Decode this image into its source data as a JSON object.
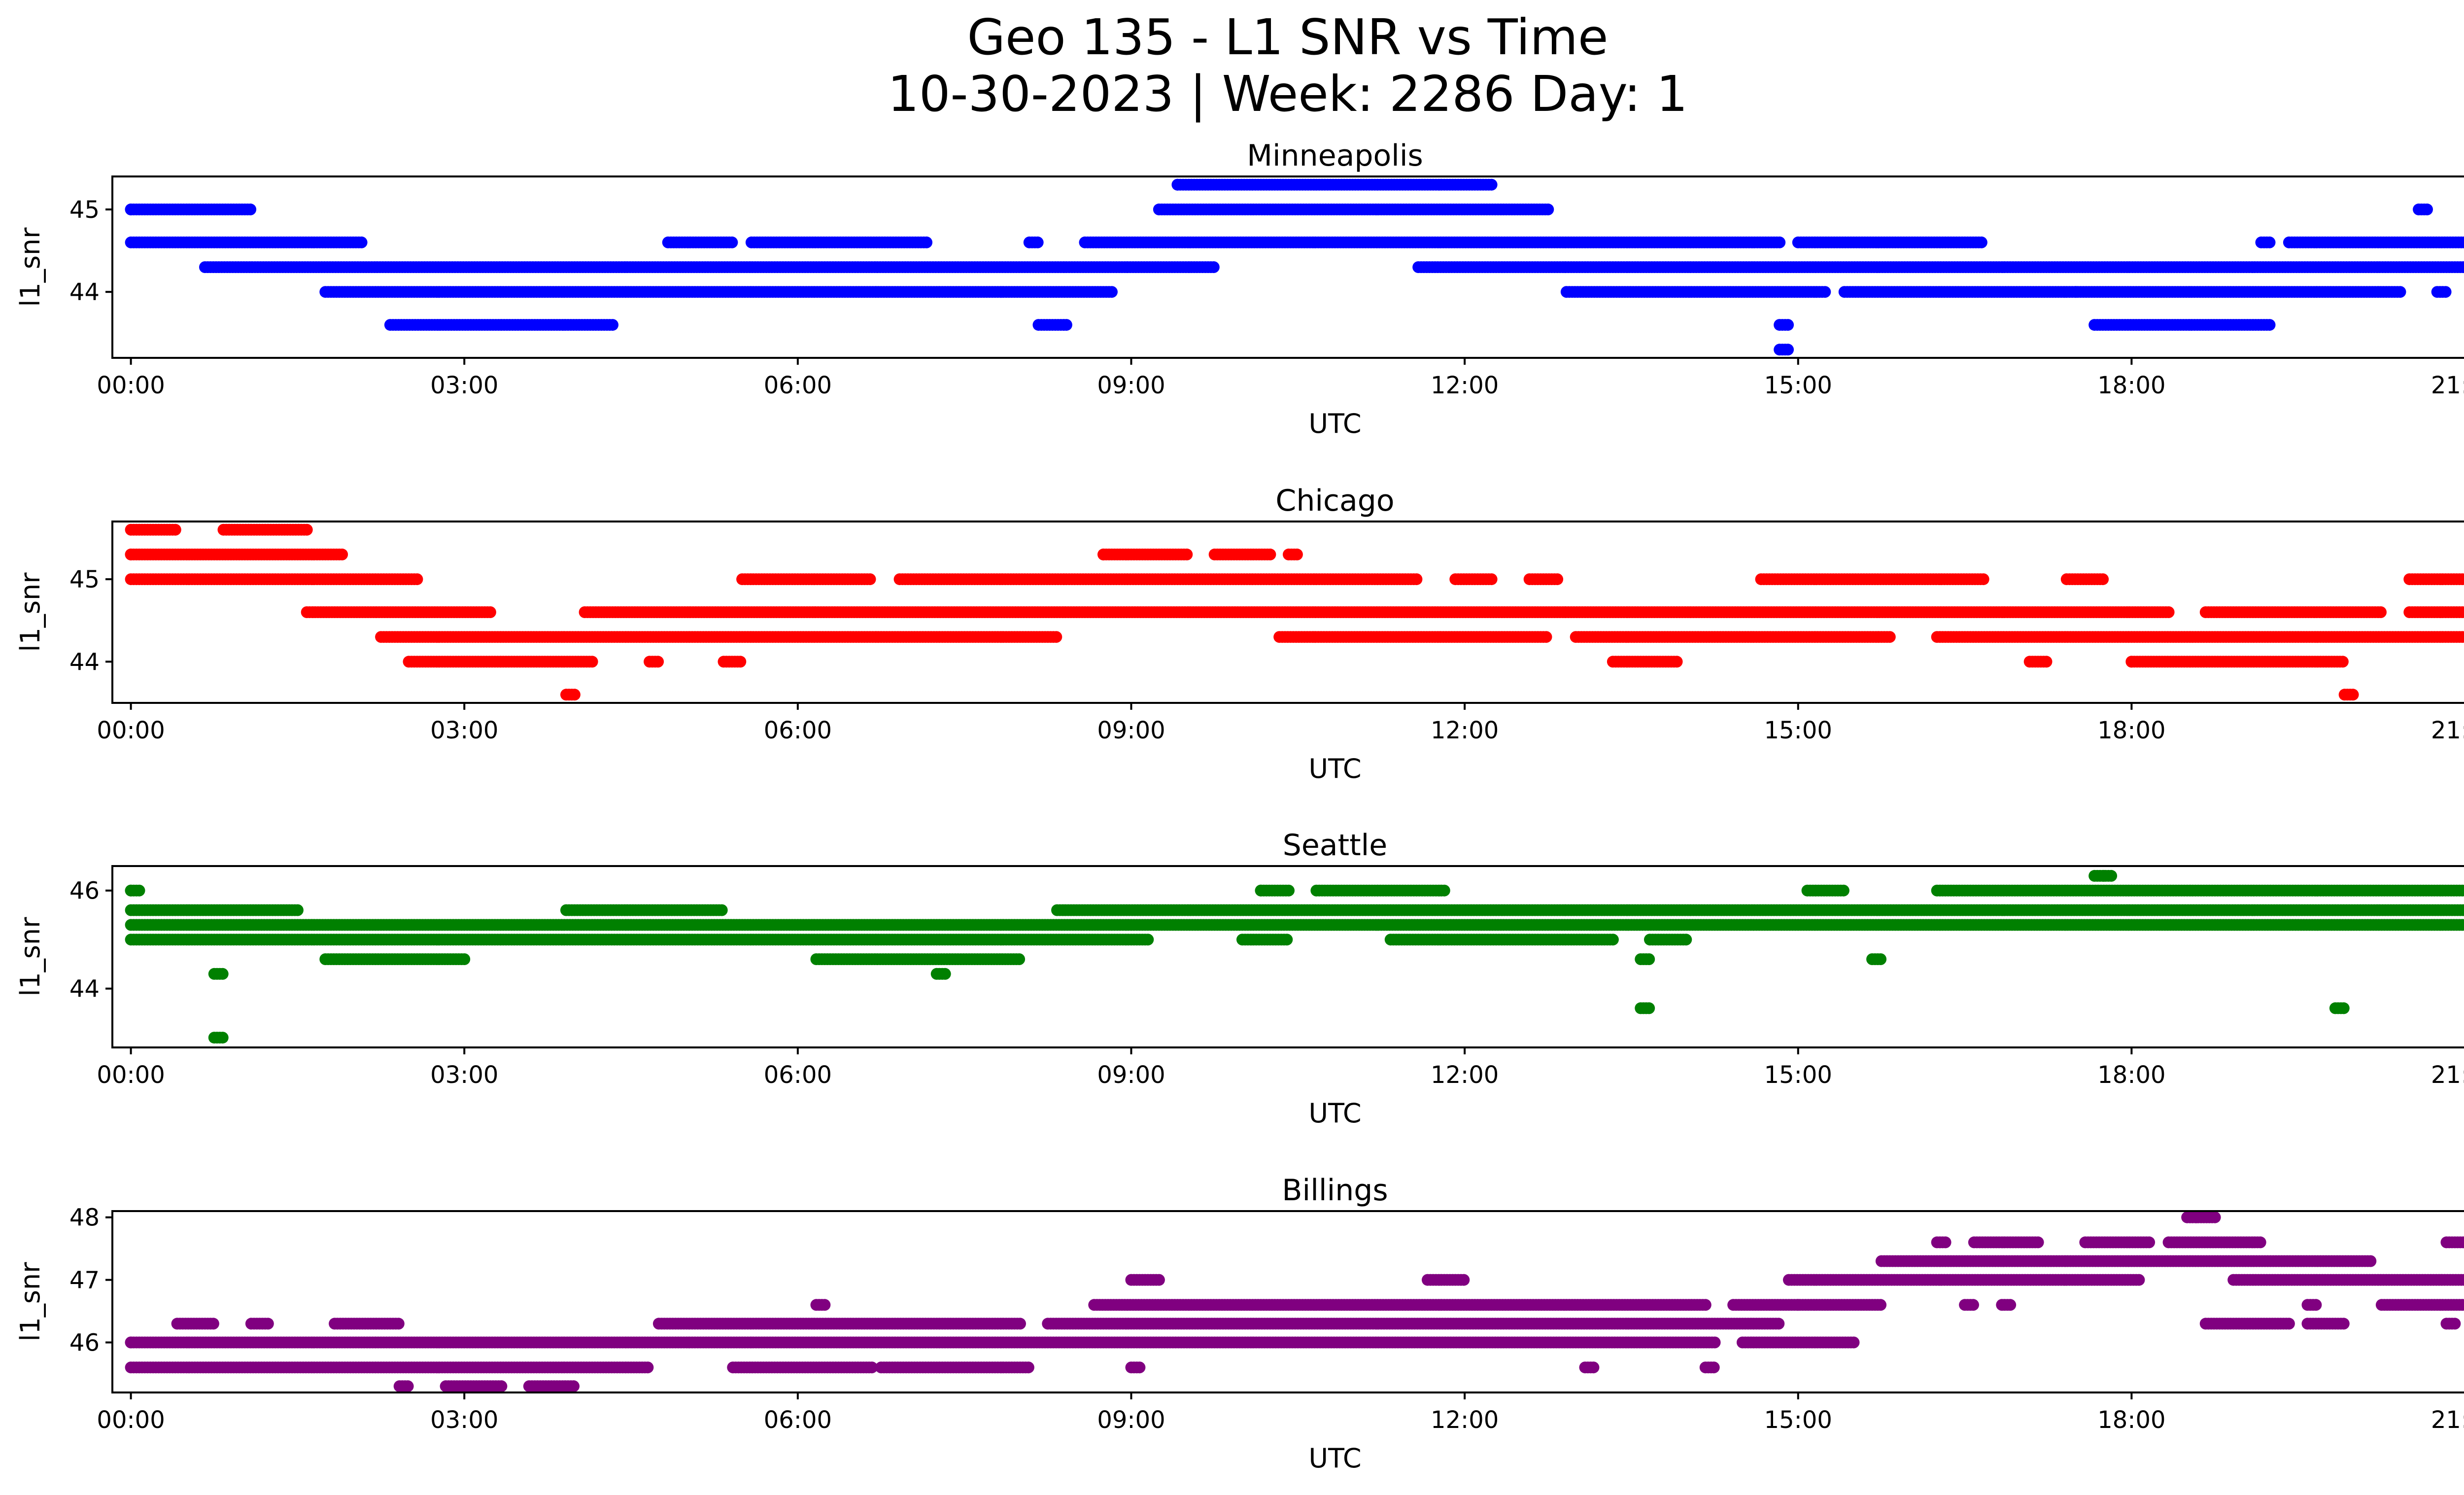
{
  "figure": {
    "title_line1": "Geo 135 - L1 SNR vs Time",
    "title_line2": "10-30-2023 | Week: 2286 Day: 1"
  },
  "chart_data": [
    {
      "type": "scatter",
      "title": "Minneapolis",
      "xlabel": "UTC",
      "ylabel": "l1_snr",
      "color": "#0000ff",
      "xlim": [
        "23:50",
        "21:50"
      ],
      "ylim": [
        43.2,
        45.4
      ],
      "xticks": [
        "00:00",
        "03:00",
        "06:00",
        "09:00",
        "12:00",
        "15:00",
        "18:00",
        "21:00"
      ],
      "yticks": [
        44,
        45
      ],
      "grid": false,
      "series": [
        {
          "bands": [
            {
              "y": 45.0,
              "ranges": [
                [
                  "00:00",
                  "01:05"
                ],
                [
                  "09:15",
                  "12:45"
                ],
                [
                  "20:35",
                  "20:40"
                ]
              ]
            },
            {
              "y": 44.6,
              "ranges": [
                [
                  "00:00",
                  "02:05"
                ],
                [
                  "04:50",
                  "05:25"
                ],
                [
                  "05:35",
                  "07:10"
                ],
                [
                  "08:05",
                  "08:10"
                ],
                [
                  "08:35",
                  "14:50"
                ],
                [
                  "15:00",
                  "16:40"
                ],
                [
                  "19:10",
                  "19:15"
                ],
                [
                  "19:25",
                  "21:35"
                ]
              ]
            },
            {
              "y": 44.3,
              "ranges": [
                [
                  "00:40",
                  "09:45"
                ],
                [
                  "11:35",
                  "21:35"
                ]
              ]
            },
            {
              "y": 44.0,
              "ranges": [
                [
                  "01:45",
                  "08:50"
                ],
                [
                  "12:55",
                  "15:15"
                ],
                [
                  "15:25",
                  "20:25"
                ],
                [
                  "20:45",
                  "20:50"
                ]
              ]
            },
            {
              "y": 43.6,
              "ranges": [
                [
                  "02:20",
                  "04:20"
                ],
                [
                  "08:10",
                  "08:25"
                ],
                [
                  "14:50",
                  "14:55"
                ],
                [
                  "17:40",
                  "19:15"
                ]
              ]
            },
            {
              "y": 43.3,
              "ranges": [
                [
                  "14:50",
                  "14:55"
                ]
              ]
            },
            {
              "y": 45.3,
              "ranges": [
                [
                  "09:25",
                  "12:15"
                ]
              ]
            }
          ],
          "x": [
            "00:00",
            "09:25",
            "17:30",
            "21:35"
          ],
          "y": [
            45.0,
            45.3,
            44.0,
            44.6
          ]
        }
      ]
    },
    {
      "type": "scatter",
      "title": "Chicago",
      "xlabel": "UTC",
      "ylabel": "l1_snr",
      "color": "#ff0000",
      "xlim": [
        "23:50",
        "21:50"
      ],
      "ylim": [
        43.5,
        45.7
      ],
      "xticks": [
        "00:00",
        "03:00",
        "06:00",
        "09:00",
        "12:00",
        "15:00",
        "18:00",
        "21:00"
      ],
      "yticks": [
        44,
        45
      ],
      "grid": false,
      "series": [
        {
          "bands": [
            {
              "y": 45.6,
              "ranges": [
                [
                  "00:00",
                  "00:25"
                ],
                [
                  "00:50",
                  "01:35"
                ]
              ]
            },
            {
              "y": 45.3,
              "ranges": [
                [
                  "00:00",
                  "01:55"
                ],
                [
                  "08:45",
                  "09:30"
                ],
                [
                  "09:45",
                  "10:15"
                ],
                [
                  "10:25",
                  "10:30"
                ]
              ]
            },
            {
              "y": 45.0,
              "ranges": [
                [
                  "00:00",
                  "02:35"
                ],
                [
                  "05:30",
                  "06:40"
                ],
                [
                  "06:55",
                  "11:35"
                ],
                [
                  "11:55",
                  "12:15"
                ],
                [
                  "12:35",
                  "12:50"
                ],
                [
                  "14:40",
                  "16:40"
                ],
                [
                  "17:25",
                  "17:45"
                ],
                [
                  "20:30",
                  "21:35"
                ]
              ]
            },
            {
              "y": 44.6,
              "ranges": [
                [
                  "01:35",
                  "03:15"
                ],
                [
                  "04:05",
                  "18:20"
                ],
                [
                  "18:40",
                  "20:15"
                ],
                [
                  "20:30",
                  "21:35"
                ]
              ]
            },
            {
              "y": 44.3,
              "ranges": [
                [
                  "02:15",
                  "08:20"
                ],
                [
                  "10:20",
                  "12:45"
                ],
                [
                  "13:00",
                  "15:50"
                ],
                [
                  "16:15",
                  "21:25"
                ]
              ]
            },
            {
              "y": 44.0,
              "ranges": [
                [
                  "02:30",
                  "04:10"
                ],
                [
                  "04:40",
                  "04:45"
                ],
                [
                  "05:20",
                  "05:30"
                ],
                [
                  "13:20",
                  "13:55"
                ],
                [
                  "17:05",
                  "17:15"
                ],
                [
                  "18:00",
                  "19:55"
                ]
              ]
            },
            {
              "y": 43.6,
              "ranges": [
                [
                  "03:55",
                  "04:00"
                ],
                [
                  "19:55",
                  "20:00"
                ]
              ]
            }
          ],
          "x": [
            "00:00",
            "08:45",
            "18:00",
            "21:35"
          ],
          "y": [
            45.3,
            45.3,
            44.0,
            44.6
          ]
        }
      ]
    },
    {
      "type": "scatter",
      "title": "Seattle",
      "xlabel": "UTC",
      "ylabel": "l1_snr",
      "color": "#008000",
      "xlim": [
        "23:50",
        "21:50"
      ],
      "ylim": [
        42.8,
        46.5
      ],
      "xticks": [
        "00:00",
        "03:00",
        "06:00",
        "09:00",
        "12:00",
        "15:00",
        "18:00",
        "21:00"
      ],
      "yticks": [
        44,
        46
      ],
      "grid": false,
      "series": [
        {
          "bands": [
            {
              "y": 46.0,
              "ranges": [
                [
                  "00:00",
                  "00:05"
                ],
                [
                  "10:10",
                  "10:25"
                ],
                [
                  "10:40",
                  "11:50"
                ],
                [
                  "15:05",
                  "15:25"
                ],
                [
                  "16:15",
                  "21:10"
                ]
              ]
            },
            {
              "y": 45.6,
              "ranges": [
                [
                  "00:00",
                  "01:30"
                ],
                [
                  "03:55",
                  "05:20"
                ],
                [
                  "08:20",
                  "21:35"
                ]
              ]
            },
            {
              "y": 45.3,
              "ranges": [
                [
                  "00:00",
                  "21:35"
                ]
              ]
            },
            {
              "y": 45.0,
              "ranges": [
                [
                  "00:00",
                  "09:10"
                ],
                [
                  "10:00",
                  "10:25"
                ],
                [
                  "11:20",
                  "13:20"
                ],
                [
                  "13:40",
                  "14:00"
                ]
              ]
            },
            {
              "y": 44.6,
              "ranges": [
                [
                  "01:45",
                  "03:00"
                ],
                [
                  "06:10",
                  "08:00"
                ],
                [
                  "13:35",
                  "13:40"
                ],
                [
                  "15:40",
                  "15:45"
                ]
              ]
            },
            {
              "y": 44.3,
              "ranges": [
                [
                  "00:45",
                  "00:50"
                ],
                [
                  "07:15",
                  "07:20"
                ]
              ]
            },
            {
              "y": 43.6,
              "ranges": [
                [
                  "13:35",
                  "13:40"
                ],
                [
                  "19:50",
                  "19:55"
                ]
              ]
            },
            {
              "y": 43.0,
              "ranges": [
                [
                  "00:45",
                  "00:50"
                ]
              ]
            },
            {
              "y": 46.3,
              "ranges": [
                [
                  "17:40",
                  "17:50"
                ]
              ]
            }
          ],
          "x": [
            "00:00",
            "10:10",
            "17:45",
            "21:35"
          ],
          "y": [
            46.0,
            46.0,
            46.3,
            45.3
          ]
        }
      ]
    },
    {
      "type": "scatter",
      "title": "Billings",
      "xlabel": "UTC",
      "ylabel": "l1_snr",
      "color": "#800080",
      "xlim": [
        "23:50",
        "21:50"
      ],
      "ylim": [
        45.2,
        48.1
      ],
      "xticks": [
        "00:00",
        "03:00",
        "06:00",
        "09:00",
        "12:00",
        "15:00",
        "18:00",
        "21:00"
      ],
      "yticks": [
        46,
        47,
        48
      ],
      "grid": false,
      "series": [
        {
          "bands": [
            {
              "y": 48.0,
              "ranges": [
                [
                  "18:30",
                  "18:45"
                ]
              ]
            },
            {
              "y": 47.6,
              "ranges": [
                [
                  "16:15",
                  "16:20"
                ],
                [
                  "16:35",
                  "17:10"
                ],
                [
                  "17:35",
                  "18:10"
                ],
                [
                  "18:20",
                  "19:10"
                ],
                [
                  "20:50",
                  "21:00"
                ]
              ]
            },
            {
              "y": 47.3,
              "ranges": [
                [
                  "15:45",
                  "20:10"
                ],
                [
                  "21:15",
                  "21:20"
                ]
              ]
            },
            {
              "y": 47.0,
              "ranges": [
                [
                  "09:00",
                  "09:15"
                ],
                [
                  "11:40",
                  "12:00"
                ],
                [
                  "14:55",
                  "18:05"
                ],
                [
                  "18:55",
                  "21:35"
                ]
              ]
            },
            {
              "y": 46.6,
              "ranges": [
                [
                  "06:10",
                  "06:15"
                ],
                [
                  "08:40",
                  "14:10"
                ],
                [
                  "14:25",
                  "15:45"
                ],
                [
                  "16:30",
                  "16:35"
                ],
                [
                  "16:50",
                  "16:55"
                ],
                [
                  "19:35",
                  "19:40"
                ],
                [
                  "20:15",
                  "21:35"
                ]
              ]
            },
            {
              "y": 46.3,
              "ranges": [
                [
                  "00:25",
                  "00:45"
                ],
                [
                  "01:05",
                  "01:15"
                ],
                [
                  "01:50",
                  "02:25"
                ],
                [
                  "04:45",
                  "08:00"
                ],
                [
                  "08:15",
                  "14:50"
                ],
                [
                  "18:40",
                  "19:25"
                ],
                [
                  "19:35",
                  "19:55"
                ],
                [
                  "20:50",
                  "20:55"
                ],
                [
                  "21:05",
                  "21:35"
                ]
              ]
            },
            {
              "y": 46.0,
              "ranges": [
                [
                  "00:00",
                  "14:15"
                ],
                [
                  "14:30",
                  "15:30"
                ]
              ]
            },
            {
              "y": 45.6,
              "ranges": [
                [
                  "00:00",
                  "04:40"
                ],
                [
                  "05:25",
                  "06:40"
                ],
                [
                  "06:45",
                  "08:05"
                ],
                [
                  "09:00",
                  "09:05"
                ],
                [
                  "13:05",
                  "13:10"
                ],
                [
                  "14:10",
                  "14:15"
                ]
              ]
            },
            {
              "y": 45.3,
              "ranges": [
                [
                  "02:25",
                  "02:30"
                ],
                [
                  "02:50",
                  "03:20"
                ],
                [
                  "03:35",
                  "04:00"
                ]
              ]
            }
          ],
          "x": [
            "00:00",
            "15:00",
            "18:35",
            "21:35"
          ],
          "y": [
            46.0,
            46.6,
            48.0,
            47.0
          ]
        }
      ]
    }
  ]
}
